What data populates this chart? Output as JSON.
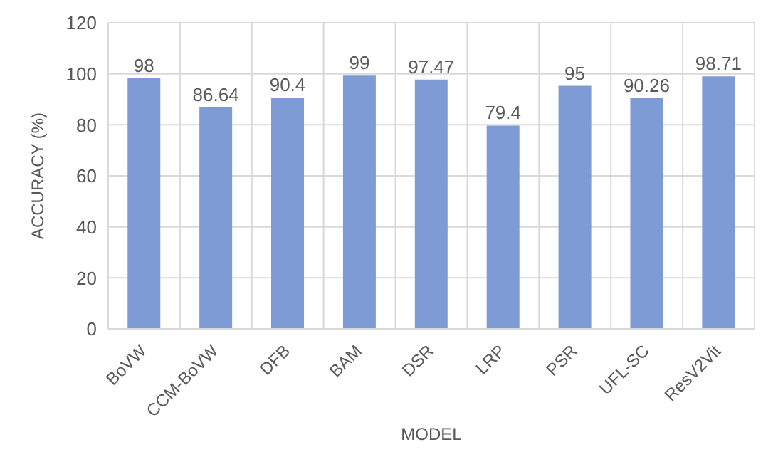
{
  "chart_data": {
    "type": "bar",
    "xlabel": "MODEL",
    "ylabel": "ACCURACY (%)",
    "categories": [
      "BoVW",
      "CCM-BoVW",
      "DFB",
      "BAM",
      "DSR",
      "LRP",
      "PSR",
      "UFL-SC",
      "ResV2Vit"
    ],
    "values": [
      98,
      86.64,
      90.4,
      99,
      97.47,
      79.4,
      95,
      90.26,
      98.71
    ],
    "color": "#7f9bd6",
    "ylim": [
      0,
      120
    ],
    "yticks": [
      0,
      20,
      40,
      60,
      80,
      100,
      120
    ],
    "grid": true,
    "data_labels": true
  }
}
